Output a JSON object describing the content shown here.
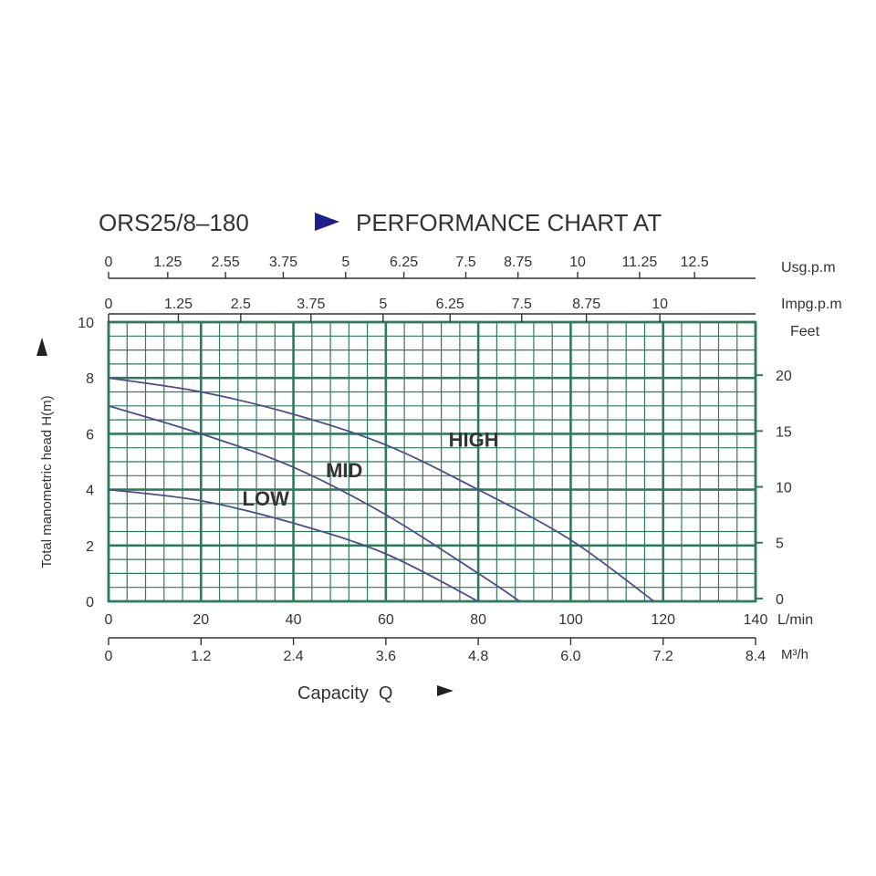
{
  "chart_data": {
    "type": "line",
    "title": "ORS25/8–180",
    "subtitle": "PERFORMANCE CHART AT",
    "ylabel": "Total manometric head H(m)",
    "xlabel": "Capacity  Q",
    "xlim": [
      0,
      140
    ],
    "ylim": [
      0,
      10
    ],
    "grid": true,
    "x_ticks": [
      "0",
      "20",
      "40",
      "60",
      "80",
      "100",
      "120",
      "140"
    ],
    "x_unit": "L/min",
    "y_ticks": [
      "0",
      "2",
      "4",
      "6",
      "8",
      "10"
    ],
    "axis_m3h": {
      "unit": "M³/h",
      "ticks": [
        {
          "label": "0",
          "lmin": 0
        },
        {
          "label": "1.2",
          "lmin": 20
        },
        {
          "label": "2.4",
          "lmin": 40
        },
        {
          "label": "3.6",
          "lmin": 60
        },
        {
          "label": "4.8",
          "lmin": 80
        },
        {
          "label": "6.0",
          "lmin": 100
        },
        {
          "label": "7.2",
          "lmin": 120
        },
        {
          "label": "8.4",
          "lmin": 140
        }
      ]
    },
    "axis_usgpm": {
      "unit": "Usg.p.m",
      "ticks": [
        {
          "label": "0",
          "lmin": 0
        },
        {
          "label": "1.25",
          "lmin": 12.8
        },
        {
          "label": "2.55",
          "lmin": 25.3
        },
        {
          "label": "3.75",
          "lmin": 37.8
        },
        {
          "label": "5",
          "lmin": 51.3
        },
        {
          "label": "6.25",
          "lmin": 63.9
        },
        {
          "label": "7.5",
          "lmin": 77.3
        },
        {
          "label": "8.75",
          "lmin": 88.6
        },
        {
          "label": "10",
          "lmin": 101.5
        },
        {
          "label": "11.25",
          "lmin": 114.9
        },
        {
          "label": "12.5",
          "lmin": 126.8
        }
      ]
    },
    "axis_impgpm": {
      "unit": "Impg.p.m",
      "ticks": [
        {
          "label": "0",
          "lmin": 0
        },
        {
          "label": "1.25",
          "lmin": 15.1
        },
        {
          "label": "2.5",
          "lmin": 28.6
        },
        {
          "label": "3.75",
          "lmin": 43.8
        },
        {
          "label": "5",
          "lmin": 59.4
        },
        {
          "label": "6.25",
          "lmin": 73.9
        },
        {
          "label": "7.5",
          "lmin": 89.4
        },
        {
          "label": "8.75",
          "lmin": 103.4
        },
        {
          "label": "10",
          "lmin": 119.3
        }
      ]
    },
    "axis_feet": {
      "unit": "Feet",
      "ticks": [
        {
          "label": "20",
          "m": 8.1
        },
        {
          "label": "15",
          "m": 6.1
        },
        {
          "label": "10",
          "m": 4.1
        },
        {
          "label": "5",
          "m": 2.1
        },
        {
          "label": "0",
          "m": 0.1
        }
      ]
    },
    "series": [
      {
        "name": "HIGH",
        "label_at": [
          79,
          5.8
        ],
        "x": [
          0,
          20,
          40,
          60,
          80,
          100,
          118
        ],
        "y": [
          8.0,
          7.5,
          6.7,
          5.6,
          4.0,
          2.2,
          0.0
        ]
      },
      {
        "name": "MID",
        "label_at": [
          51,
          4.7
        ],
        "x": [
          0,
          20,
          40,
          60,
          80,
          89
        ],
        "y": [
          7.0,
          6.0,
          4.8,
          3.1,
          1.0,
          0.0
        ]
      },
      {
        "name": "LOW",
        "label_at": [
          34,
          3.7
        ],
        "x": [
          0,
          20,
          40,
          60,
          80
        ],
        "y": [
          4.0,
          3.6,
          2.8,
          1.7,
          0.0
        ]
      }
    ],
    "colors": {
      "grid": "#2f7a5c",
      "curve": "#4d4d88",
      "arrow": "#1f1f8c",
      "text": "#333333"
    }
  }
}
